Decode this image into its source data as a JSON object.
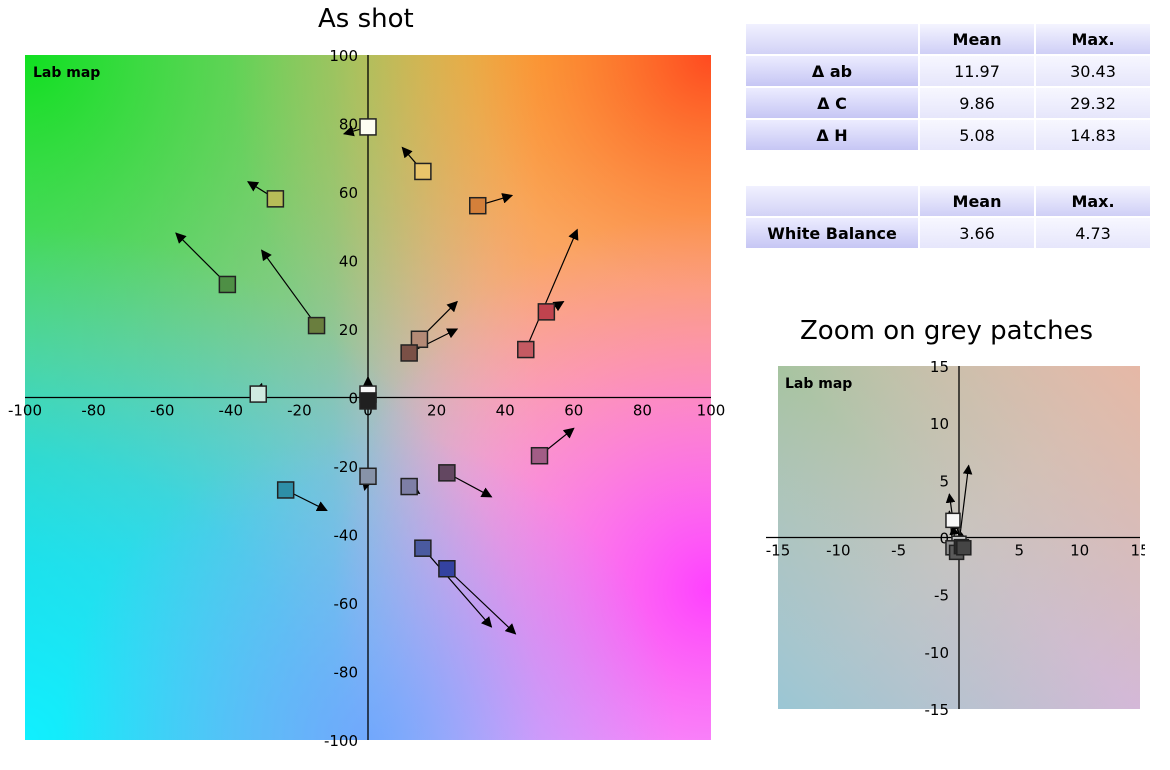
{
  "titles": {
    "main": "As shot",
    "zoom": "Zoom on grey patches"
  },
  "delta_table": {
    "headers": [
      "",
      "Mean",
      "Max."
    ],
    "rows": [
      {
        "label": "Δ ab",
        "mean": "11.97",
        "max": "30.43"
      },
      {
        "label": "Δ C",
        "mean": "9.86",
        "max": "29.32"
      },
      {
        "label": "Δ H",
        "mean": "5.08",
        "max": "14.83"
      }
    ]
  },
  "wb_table": {
    "headers": [
      "",
      "Mean",
      "Max."
    ],
    "rows": [
      {
        "label": "White Balance",
        "mean": "3.66",
        "max": "4.73"
      }
    ]
  },
  "chart_data": [
    {
      "type": "scatter",
      "title": "As shot",
      "map_label": "Lab map",
      "xlim": [
        -100,
        100
      ],
      "ylim": [
        -100,
        100
      ],
      "xticks": [
        -100,
        -80,
        -60,
        -40,
        -20,
        0,
        20,
        40,
        60,
        80,
        100
      ],
      "yticks": [
        -100,
        -80,
        -60,
        -40,
        -20,
        0,
        20,
        40,
        60,
        80,
        100
      ],
      "points": [
        {
          "x": 0,
          "y": 79,
          "tx": -7,
          "ty": 77,
          "color": "#fdfdf2"
        },
        {
          "x": 16,
          "y": 66,
          "tx": 10,
          "ty": 73,
          "color": "#e9c56a"
        },
        {
          "x": 32,
          "y": 56,
          "tx": 42,
          "ty": 59,
          "color": "#d4803a"
        },
        {
          "x": -27,
          "y": 58,
          "tx": -35,
          "ty": 63,
          "color": "#b7bd58"
        },
        {
          "x": -41,
          "y": 33,
          "tx": -56,
          "ty": 48,
          "color": "#4e8f45"
        },
        {
          "x": -15,
          "y": 21,
          "tx": -31,
          "ty": 43,
          "color": "#6a7e3e"
        },
        {
          "x": 52,
          "y": 25,
          "tx": 57,
          "ty": 28,
          "color": "#c0434e"
        },
        {
          "x": 46,
          "y": 14,
          "tx": 61,
          "ty": 49,
          "color": "#c55a62"
        },
        {
          "x": 15,
          "y": 17,
          "tx": 26,
          "ty": 28,
          "color": "#b48a76"
        },
        {
          "x": 12,
          "y": 13,
          "tx": 26,
          "ty": 20,
          "color": "#7a5046"
        },
        {
          "x": -32,
          "y": 1,
          "tx": -31,
          "ty": 4,
          "color": "#cfeae0"
        },
        {
          "x": 0,
          "y": 1,
          "tx": 0,
          "ty": 6,
          "color": "#f8f8f8"
        },
        {
          "x": 0,
          "y": -1,
          "tx": 0,
          "ty": 3,
          "color": "#202020"
        },
        {
          "x": 50,
          "y": -17,
          "tx": 60,
          "ty": -9,
          "color": "#a25d86"
        },
        {
          "x": 23,
          "y": -22,
          "tx": 36,
          "ty": -29,
          "color": "#634761"
        },
        {
          "x": -24,
          "y": -27,
          "tx": -12,
          "ty": -33,
          "color": "#2e8fa7"
        },
        {
          "x": 12,
          "y": -26,
          "tx": 15,
          "ty": -28,
          "color": "#7e7fa6"
        },
        {
          "x": 0,
          "y": -23,
          "tx": -1,
          "ty": -27,
          "color": "#8793a8"
        },
        {
          "x": 16,
          "y": -44,
          "tx": 36,
          "ty": -67,
          "color": "#4a5aa0"
        },
        {
          "x": 23,
          "y": -50,
          "tx": 43,
          "ty": -69,
          "color": "#3442a0"
        }
      ]
    },
    {
      "type": "scatter",
      "title": "Zoom on grey patches",
      "map_label": "Lab map",
      "xlim": [
        -15,
        15
      ],
      "ylim": [
        -15,
        15
      ],
      "xticks": [
        -15,
        -10,
        -5,
        0,
        5,
        10,
        15
      ],
      "yticks": [
        -15,
        -10,
        -5,
        0,
        5,
        10,
        15
      ],
      "points": [
        {
          "x": -0.5,
          "y": 1.5,
          "tx": -0.8,
          "ty": 3.8,
          "color": "#f8f8f8"
        },
        {
          "x": 0,
          "y": -0.5,
          "tx": 0.8,
          "ty": 6.3,
          "color": "#c9c9c9"
        },
        {
          "x": -0.5,
          "y": -0.9,
          "tx": -0.8,
          "ty": 2.3,
          "color": "#8f8f8f"
        },
        {
          "x": -0.2,
          "y": -1.3,
          "tx": -0.5,
          "ty": 1.0,
          "color": "#5a5a5a"
        },
        {
          "x": 0.2,
          "y": -0.8,
          "tx": -0.3,
          "ty": 1.5,
          "color": "#2a2a2a"
        },
        {
          "x": 0.4,
          "y": -0.9,
          "tx": 0.2,
          "ty": 0.4,
          "color": "#454545"
        }
      ]
    }
  ]
}
